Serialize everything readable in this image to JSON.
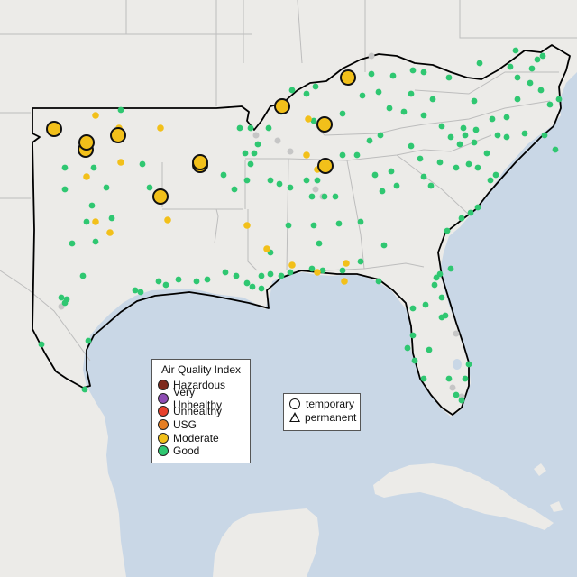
{
  "legend": {
    "title": "Air Quality Index",
    "categories": [
      {
        "label": "Hazardous",
        "color": "#7e2a1e"
      },
      {
        "label": "Very Unhealthy",
        "color": "#8e4db4"
      },
      {
        "label": "Unhealthy",
        "color": "#e8412c"
      },
      {
        "label": "USG",
        "color": "#e67e22"
      },
      {
        "label": "Moderate",
        "color": "#f2c01a"
      },
      {
        "label": "Good",
        "color": "#2fc771"
      }
    ]
  },
  "monitor_types": {
    "temporary": "temporary",
    "permanent": "permanent"
  },
  "colors": {
    "water": "#c9d7e6",
    "land": "#ecebe8",
    "state_lines": "#b9b9b9",
    "region_outline": "#000000",
    "inactive_site": "#c6c6c6"
  }
}
